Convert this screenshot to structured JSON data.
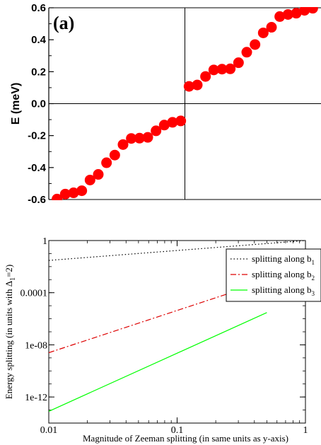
{
  "chart_data": [
    {
      "type": "scatter",
      "panel_label": "(a)",
      "ylabel": "E (meV)",
      "ylim": [
        -0.6,
        0.6
      ],
      "xlim": [
        0,
        33
      ],
      "yticks": [
        -0.6,
        -0.4,
        -0.2,
        0.0,
        0.2,
        0.4,
        0.6
      ],
      "ytick_labels": [
        "-0.6",
        "-0.4",
        "-0.2",
        "0.0",
        "0.2",
        "0.4",
        "0.6"
      ],
      "vertical_line_x": 16.5,
      "horizontal_line_y": 0,
      "marker_color": "#ff0000",
      "x": [
        1,
        2,
        3,
        4,
        5,
        6,
        7,
        8,
        9,
        10,
        11,
        12,
        13,
        14,
        15,
        16,
        17,
        18,
        19,
        20,
        21,
        22,
        23,
        24,
        25,
        26,
        27,
        28,
        29,
        30,
        31,
        32
      ],
      "y": [
        -0.597,
        -0.566,
        -0.558,
        -0.545,
        -0.478,
        -0.443,
        -0.37,
        -0.322,
        -0.256,
        -0.218,
        -0.216,
        -0.211,
        -0.17,
        -0.134,
        -0.117,
        -0.108,
        0.108,
        0.117,
        0.17,
        0.211,
        0.216,
        0.218,
        0.256,
        0.322,
        0.37,
        0.443,
        0.478,
        0.545,
        0.558,
        0.566,
        0.584,
        0.597
      ]
    },
    {
      "type": "line",
      "xscale": "log",
      "yscale": "log",
      "xlabel": "Magnitude of Zeeman splitting (in same units as y-axis)",
      "ylabel": "Energy splitting (in units with Δ",
      "ylabel_sub": "1",
      "ylabel_end": "=2)",
      "xlim": [
        0.01,
        1
      ],
      "ylim": [
        1e-14,
        1
      ],
      "xticks": [
        0.01,
        0.1,
        1
      ],
      "xtick_labels": [
        "0.01",
        "0.1",
        "1"
      ],
      "yticks": [
        1e-12,
        1e-08,
        0.0001,
        1
      ],
      "ytick_labels": [
        "1e-12",
        "1e-08",
        "0.0001",
        "1"
      ],
      "legend": "top-right",
      "series": [
        {
          "name": "splitting along b",
          "sub": "1",
          "color": "#000000",
          "dash": "1.5,3",
          "x": [
            0.01,
            1
          ],
          "y": [
            0.03,
            1
          ]
        },
        {
          "name": "splitting along b",
          "sub": "2",
          "color": "#dd0000",
          "dash": "8,3,2,3",
          "x": [
            0.01,
            0.5
          ],
          "y": [
            2.5e-09,
            0.0008
          ]
        },
        {
          "name": "splitting along b",
          "sub": "3",
          "color": "#00ff00",
          "dash": "",
          "x": [
            0.01,
            0.5
          ],
          "y": [
            8e-14,
            3e-06
          ]
        }
      ]
    }
  ]
}
